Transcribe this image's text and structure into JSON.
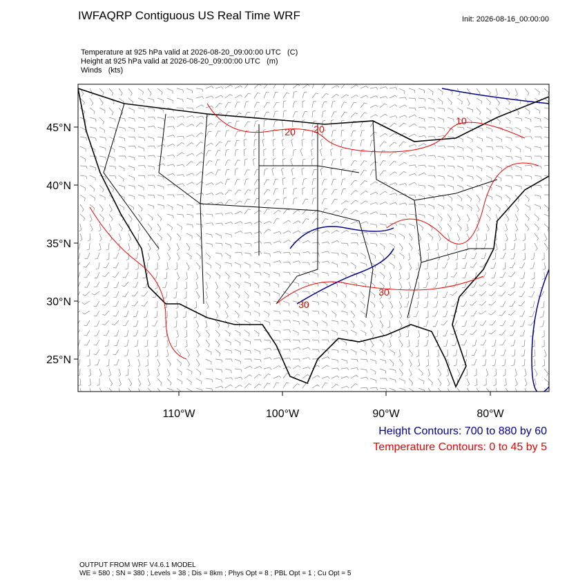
{
  "header": {
    "title": "IWFAQRP Contiguous US Real Time WRF",
    "init": "Init: 2026-08-16_00:00:00"
  },
  "fields": [
    "Temperature at 925 hPa valid at 2026-08-20_09:00:00 UTC   (C)",
    "Height at 925 hPa valid at 2026-08-20_09:00:00 UTC   (m)",
    "Winds   (kts)"
  ],
  "map": {
    "lat_labels": [
      "45°N",
      "40°N",
      "35°N",
      "30°N",
      "25°N"
    ],
    "lon_labels": [
      "110°W",
      "100°W",
      "90°W",
      "80°W"
    ],
    "contour_labels": [
      20,
      20,
      10,
      30,
      30
    ]
  },
  "legend": {
    "height": "Height Contours: 700 to 880 by 60",
    "temperature": "Temperature Contours: 0 to 45 by 5"
  },
  "footer": [
    "OUTPUT FROM WRF V4.6.1 MODEL",
    "WE = 580 ; SN = 380 ; Levels = 38 ; Dis = 8km ; Phys Opt = 8 ; PBL Opt = 1 ; Cu Opt = 5"
  ]
}
